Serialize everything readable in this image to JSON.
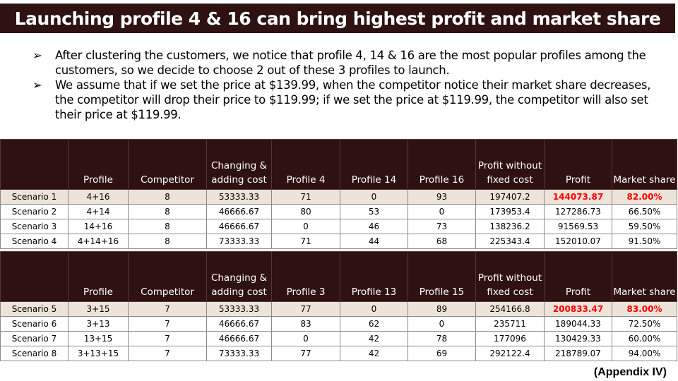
{
  "title": "Launching profile 4 & 16 can bring highest profit and market share",
  "bullets": [
    {
      "arrow": "➢",
      "text": "After clustering the customers, we notice that profile 4, 14 & 16 are the most popular profiles among the customers, so we decide to choose 2 out of these 3 profiles to launch."
    },
    {
      "arrow": "➢",
      "text": "We assume that if we set the price at $139.99, when the competitor notice their market share decreases, the competitor will drop their price to $119.99; if we set the price at $119.99, the competitor will also set their price at $119.99."
    }
  ],
  "table1": {
    "headers": [
      "",
      "Profile",
      "Competitor",
      "Changing & adding  cost",
      "Profile 4",
      "Profile 14",
      "Profile 16",
      "Profit without fixed cost",
      "Profit",
      "Market share"
    ],
    "rows": [
      [
        "Scenario 1",
        "4+16",
        "8",
        "53333.33",
        "71",
        "0",
        "93",
        "197407.2",
        "144073.87",
        "82.00%"
      ],
      [
        "Scenario 2",
        "4+14",
        "8",
        "46666.67",
        "80",
        "53",
        "0",
        "173953.4",
        "127286.73",
        "66.50%"
      ],
      [
        "Scenario 3",
        "14+16",
        "8",
        "46666.67",
        "0",
        "46",
        "73",
        "138236.2",
        "91569.53",
        "59.50%"
      ],
      [
        "Scenario 4",
        "4+14+16",
        "8",
        "73333.33",
        "71",
        "44",
        "68",
        "225343.4",
        "152010.07",
        "91.50%"
      ]
    ]
  },
  "table2": {
    "headers": [
      "",
      "Profile",
      "Competitor",
      "Changing & adding  cost",
      "Profile 3",
      "Profile 13",
      "Profile 15",
      "Profit without fixed cost",
      "Profit",
      "Market share"
    ],
    "rows": [
      [
        "Scenario 5",
        "3+15",
        "7",
        "53333.33",
        "77",
        "0",
        "89",
        "254166.8",
        "200833.47",
        "83.00%"
      ],
      [
        "Scenario 6",
        "3+13",
        "7",
        "46666.67",
        "83",
        "62",
        "0",
        "235711",
        "189044.33",
        "72.50%"
      ],
      [
        "Scenario 7",
        "13+15",
        "7",
        "46666.67",
        "0",
        "42",
        "78",
        "177096",
        "130429.33",
        "60.00%"
      ],
      [
        "Scenario 8",
        "3+13+15",
        "7",
        "73333.33",
        "77",
        "42",
        "69",
        "292122.4",
        "218789.07",
        "94.00%"
      ]
    ]
  },
  "appendix": "(Appendix IV)",
  "colors": {
    "header_bg": "#2e1211",
    "highlight_row": "#ede3d8",
    "emphasis_red": "#ff0000"
  }
}
